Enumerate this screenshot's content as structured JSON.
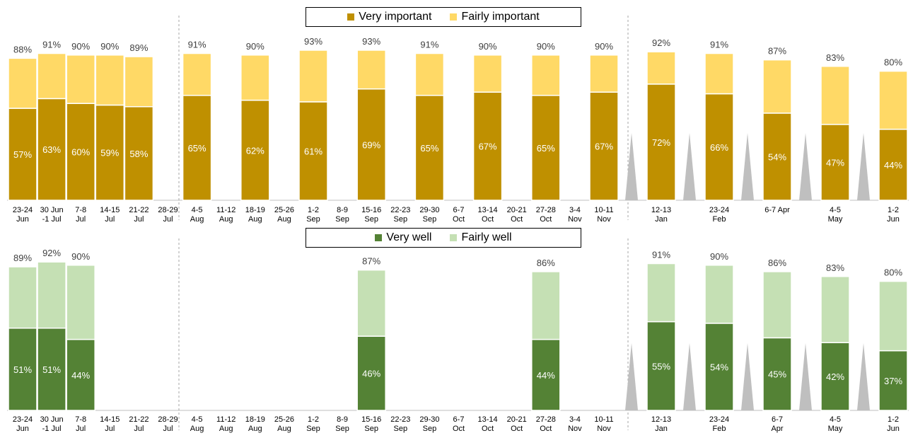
{
  "colors": {
    "very_important": "#BF9000",
    "fairly_important": "#FFD966",
    "very_well": "#548235",
    "fairly_well": "#C5E0B4",
    "gap_marker": "#BFBFBF",
    "divider": "#A6A6A6"
  },
  "legends": {
    "top": {
      "very": "Very important",
      "fairly": "Fairly important"
    },
    "bottom": {
      "very": "Very well",
      "fairly": "Fairly well"
    }
  },
  "chart_data": [
    {
      "type": "bar",
      "stacked": true,
      "title": "",
      "categories": [
        [
          "23-24",
          "Jun"
        ],
        [
          "30 Jun",
          "-1 Jul"
        ],
        [
          "7-8",
          "Jul"
        ],
        [
          "14-15",
          "Jul"
        ],
        [
          "21-22",
          "Jul"
        ],
        [
          "28-29",
          "Jul"
        ],
        [
          "4-5",
          "Aug"
        ],
        [
          "11-12",
          "Aug"
        ],
        [
          "18-19",
          "Aug"
        ],
        [
          "25-26",
          "Aug"
        ],
        [
          "1-2",
          "Sep"
        ],
        [
          "8-9",
          "Sep"
        ],
        [
          "15-16",
          "Sep"
        ],
        [
          "22-23",
          "Sep"
        ],
        [
          "29-30",
          "Sep"
        ],
        [
          "6-7",
          "Oct"
        ],
        [
          "13-14",
          "Oct"
        ],
        [
          "20-21",
          "Oct"
        ],
        [
          "27-28",
          "Oct"
        ],
        [
          "3-4",
          "Nov"
        ],
        [
          "10-11",
          "Nov"
        ],
        [
          "12-13",
          "Jan"
        ],
        [
          "23-24",
          "Feb"
        ],
        [
          "6-7 Apr",
          ""
        ],
        [
          "4-5",
          "May"
        ],
        [
          "1-2",
          "Jun"
        ]
      ],
      "series": [
        {
          "name": "Very important",
          "values": [
            57,
            63,
            60,
            59,
            58,
            null,
            65,
            null,
            62,
            null,
            61,
            null,
            69,
            null,
            65,
            null,
            67,
            null,
            65,
            null,
            67,
            72,
            66,
            54,
            47,
            44
          ]
        },
        {
          "name": "Fairly important",
          "values": [
            31,
            28,
            30,
            31,
            31,
            null,
            26,
            null,
            28,
            null,
            32,
            null,
            24,
            null,
            26,
            null,
            23,
            null,
            25,
            null,
            23,
            20,
            25,
            33,
            36,
            36
          ]
        }
      ],
      "totals": [
        88,
        91,
        90,
        90,
        89,
        null,
        91,
        null,
        90,
        null,
        93,
        null,
        93,
        null,
        91,
        null,
        90,
        null,
        90,
        null,
        90,
        92,
        91,
        87,
        83,
        80
      ],
      "ylim": [
        0,
        100
      ],
      "legend": "top-center"
    },
    {
      "type": "bar",
      "stacked": true,
      "title": "",
      "categories": [
        [
          "23-24",
          "Jun"
        ],
        [
          "30 Jun",
          "-1 Jul"
        ],
        [
          "7-8",
          "Jul"
        ],
        [
          "14-15",
          "Jul"
        ],
        [
          "21-22",
          "Jul"
        ],
        [
          "28-29",
          "Jul"
        ],
        [
          "4-5",
          "Aug"
        ],
        [
          "11-12",
          "Aug"
        ],
        [
          "18-19",
          "Aug"
        ],
        [
          "25-26",
          "Aug"
        ],
        [
          "1-2",
          "Sep"
        ],
        [
          "8-9",
          "Sep"
        ],
        [
          "15-16",
          "Sep"
        ],
        [
          "22-23",
          "Sep"
        ],
        [
          "29-30",
          "Sep"
        ],
        [
          "6-7",
          "Oct"
        ],
        [
          "13-14",
          "Oct"
        ],
        [
          "20-21",
          "Oct"
        ],
        [
          "27-28",
          "Oct"
        ],
        [
          "3-4",
          "Nov"
        ],
        [
          "10-11",
          "Nov"
        ],
        [
          "12-13",
          "Jan"
        ],
        [
          "23-24",
          "Feb"
        ],
        [
          "6-7",
          "Apr"
        ],
        [
          "4-5",
          "May"
        ],
        [
          "1-2",
          "Jun"
        ]
      ],
      "series": [
        {
          "name": "Very well",
          "values": [
            51,
            51,
            44,
            null,
            null,
            null,
            null,
            null,
            null,
            null,
            null,
            null,
            46,
            null,
            null,
            null,
            null,
            null,
            44,
            null,
            null,
            55,
            54,
            45,
            42,
            37
          ]
        },
        {
          "name": "Fairly well",
          "values": [
            38,
            41,
            46,
            null,
            null,
            null,
            null,
            null,
            null,
            null,
            null,
            null,
            41,
            null,
            null,
            null,
            null,
            null,
            42,
            null,
            null,
            36,
            36,
            41,
            41,
            43
          ]
        }
      ],
      "totals": [
        89,
        92,
        90,
        null,
        null,
        null,
        null,
        null,
        null,
        null,
        null,
        null,
        87,
        null,
        null,
        null,
        null,
        null,
        86,
        null,
        null,
        91,
        90,
        86,
        83,
        80
      ],
      "ylim": [
        0,
        100
      ],
      "legend": "top-center"
    }
  ]
}
